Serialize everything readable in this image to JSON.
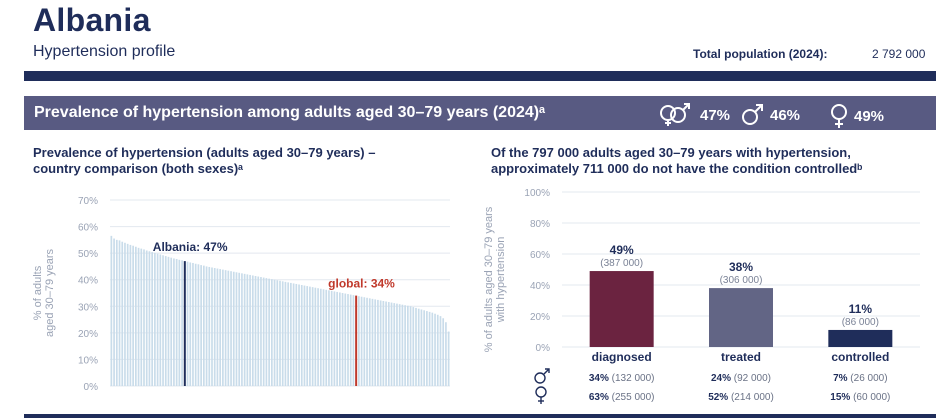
{
  "header": {
    "country": "Albania",
    "subtitle": "Hypertension profile",
    "population_label": "Total population (2024):",
    "population_value": "2 792 000"
  },
  "banner": {
    "title": "Prevalence of hypertension among adults aged 30–79 years (2024)ᵃ",
    "both_value": "47%",
    "male_value": "46%",
    "female_value": "49%",
    "colors": {
      "background": "#585a82",
      "text": "#ffffff"
    }
  },
  "left_panel": {
    "title_line1": "Prevalence of hypertension (adults aged 30–79 years) –",
    "title_line2": "country comparison (both sexes)ᵃ"
  },
  "right_panel": {
    "title_line1": "Of the 797 000 adults aged 30–79 years with hypertension,",
    "title_line2": "approximately 711 000 do not have the condition controlledᵇ"
  },
  "chart_data": [
    {
      "type": "bar",
      "ylabel_line1": "% of adults",
      "ylabel_line2": "aged 30–79 years",
      "ylim": [
        0,
        70
      ],
      "ytick_labels": [
        "0%",
        "10%",
        "20%",
        "30%",
        "40%",
        "50%",
        "60%",
        "70%"
      ],
      "ytick_values": [
        0,
        10,
        20,
        30,
        40,
        50,
        60,
        70
      ],
      "grid": true,
      "values": [
        56.5,
        55.5,
        55,
        54.8,
        54.3,
        53.9,
        53.5,
        53.1,
        52.8,
        52.4,
        52,
        51.7,
        51.4,
        51,
        50.7,
        50.4,
        50.1,
        49.8,
        49.5,
        49.2,
        48.9,
        48.6,
        48.3,
        48,
        47.8,
        47.5,
        47.3,
        47,
        46.8,
        46.5,
        46.3,
        46,
        45.8,
        45.5,
        45.3,
        45,
        44.8,
        44.6,
        44.4,
        44.2,
        44,
        43.8,
        43.6,
        43.4,
        43.2,
        43,
        42.8,
        42.6,
        42.4,
        42.2,
        42,
        41.8,
        41.6,
        41.4,
        41.2,
        41,
        40.8,
        40.6,
        40.4,
        40.2,
        40,
        39.8,
        39.6,
        39.4,
        39.2,
        39,
        38.8,
        38.6,
        38.4,
        38.2,
        38,
        37.8,
        37.6,
        37.4,
        37.2,
        37,
        36.8,
        36.6,
        36.4,
        36.2,
        36,
        35.8,
        35.6,
        35.4,
        35.2,
        35,
        34.8,
        34.6,
        34.4,
        34.2,
        34,
        33.8,
        33.6,
        33.4,
        33.2,
        33,
        32.8,
        32.6,
        32.4,
        32.2,
        32,
        31.8,
        31.6,
        31.4,
        31.2,
        31,
        30.8,
        30.6,
        30.4,
        30.2,
        30,
        29.7,
        29.4,
        29.1,
        28.8,
        28.5,
        28.2,
        27.9,
        27.6,
        27.2,
        26.8,
        26.3,
        25.5,
        24,
        20.5
      ],
      "highlight_country": {
        "label": "Albania: 47%",
        "value": 47,
        "index": 27,
        "color": "#1f2d5a"
      },
      "global": {
        "label": "global: 34%",
        "value": 34,
        "index": 90,
        "color": "#c0392b"
      },
      "bar_color": "#c9dcea"
    },
    {
      "type": "bar",
      "ylabel_line1": "% of adults aged 30–79 years",
      "ylabel_line2": "with hypertension",
      "ylim": [
        0,
        100
      ],
      "ytick_labels": [
        "0%",
        "20%",
        "40%",
        "60%",
        "80%",
        "100%"
      ],
      "ytick_values": [
        0,
        20,
        40,
        60,
        80,
        100
      ],
      "grid": true,
      "categories": [
        "diagnosed",
        "treated",
        "controlled"
      ],
      "values": [
        49,
        38,
        11
      ],
      "value_labels": [
        "49%",
        "38%",
        "11%"
      ],
      "count_labels": [
        "(387 000)",
        "(306 000)",
        "(86 000)"
      ],
      "colors": [
        "#6b2340",
        "#626585",
        "#1f2d5a"
      ],
      "male_pct": [
        "34%",
        "24%",
        "7%"
      ],
      "male_count": [
        "(132 000)",
        "(92 000)",
        "(26 000)"
      ],
      "female_pct": [
        "63%",
        "52%",
        "15%"
      ],
      "female_count": [
        "(255 000)",
        "(214 000)",
        "(60 000)"
      ]
    }
  ]
}
